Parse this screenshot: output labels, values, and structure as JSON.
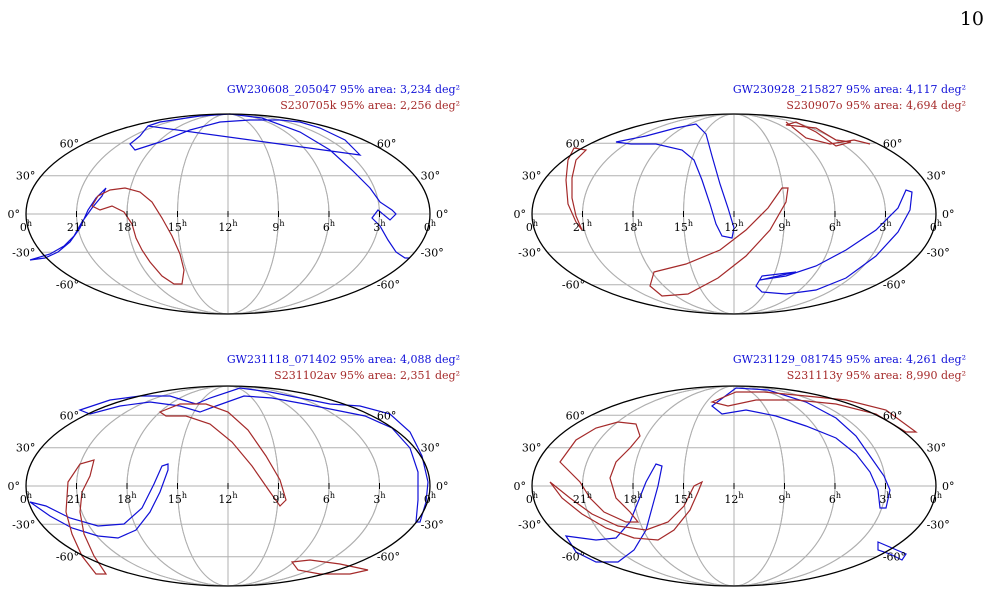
{
  "page_number": "10",
  "colors": {
    "gw": "#1010d8",
    "s": "#a52a2a",
    "grid": "#b0b0b0",
    "frame": "#000000"
  },
  "axes": {
    "lon_labels": [
      "0",
      "21",
      "18",
      "15",
      "12",
      "9",
      "6",
      "3",
      "0"
    ],
    "hour_suffix": "h",
    "lat_labels_left": [
      "60°",
      "30°",
      "0°",
      "-30°",
      "-60°"
    ],
    "lat_labels_right": [
      "60°",
      "30°",
      "0°",
      "-30°",
      "-60°"
    ]
  },
  "chart_data": [
    {
      "type": "sky-map",
      "legend": [
        {
          "name": "GW230608_205047",
          "stat": "95% area: 3,234 deg²",
          "color": "#1010d8"
        },
        {
          "name": "S230705k",
          "stat": "95% area: 2,256 deg²",
          "color": "#a52a2a"
        }
      ]
    },
    {
      "type": "sky-map",
      "legend": [
        {
          "name": "GW230928_215827",
          "stat": "95% area: 4,117 deg²",
          "color": "#1010d8"
        },
        {
          "name": "S230907o",
          "stat": "95% area: 4,694 deg²",
          "color": "#a52a2a"
        }
      ]
    },
    {
      "type": "sky-map",
      "legend": [
        {
          "name": "GW231118_071402",
          "stat": "95% area: 4,088 deg²",
          "color": "#1010d8"
        },
        {
          "name": "S231102av",
          "stat": "95% area: 2,351 deg²",
          "color": "#a52a2a"
        }
      ]
    },
    {
      "type": "sky-map",
      "legend": [
        {
          "name": "GW231129_081745",
          "stat": "95% area: 4,261 deg²",
          "color": "#1010d8"
        },
        {
          "name": "S231113y",
          "stat": "95% area: 8,990 deg²",
          "color": "#a52a2a"
        }
      ]
    }
  ]
}
